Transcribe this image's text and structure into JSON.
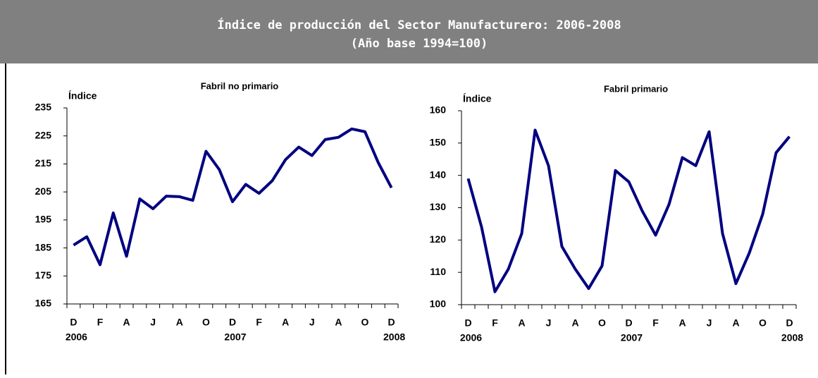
{
  "header": {
    "title": "Índice de producción del Sector Manufacturero: 2006-2008",
    "subtitle": "(Año base 1994=100)"
  },
  "chart_data": [
    {
      "type": "line",
      "title": "Fabril no primario",
      "y_label": "Índice",
      "categories": [
        "D",
        null,
        "F",
        null,
        "A",
        null,
        "J",
        null,
        "A",
        null,
        "O",
        null,
        "D",
        null,
        "F",
        null,
        "A",
        null,
        "J",
        null,
        "A",
        null,
        "O",
        null,
        "D"
      ],
      "category_years": [
        "2006",
        null,
        null,
        null,
        null,
        null,
        null,
        null,
        null,
        null,
        null,
        null,
        "2007",
        null,
        null,
        null,
        null,
        null,
        null,
        null,
        null,
        null,
        null,
        null,
        "2008"
      ],
      "series": [
        {
          "name": "Fabril no primario",
          "color": "#000080",
          "values": [
            186,
            189,
            179,
            197.5,
            182,
            202.5,
            199,
            203.5,
            203.3,
            202,
            219.5,
            213,
            201.5,
            207.7,
            204.5,
            209,
            216.5,
            221,
            218,
            223.7,
            224.5,
            227.5,
            226.5,
            215.5,
            206.5
          ]
        }
      ],
      "ylim": [
        165,
        235
      ],
      "yticks": [
        165,
        175,
        185,
        195,
        205,
        215,
        225,
        235
      ]
    },
    {
      "type": "line",
      "title": "Fabril primario",
      "y_label": "Índice",
      "categories": [
        "D",
        null,
        "F",
        null,
        "A",
        null,
        "J",
        null,
        "A",
        null,
        "O",
        null,
        "D",
        null,
        "F",
        null,
        "A",
        null,
        "J",
        null,
        "A",
        null,
        "O",
        null,
        "D"
      ],
      "category_years": [
        "2006",
        null,
        null,
        null,
        null,
        null,
        null,
        null,
        null,
        null,
        null,
        null,
        "2007",
        null,
        null,
        null,
        null,
        null,
        null,
        null,
        null,
        null,
        null,
        null,
        "2008"
      ],
      "series": [
        {
          "name": "Fabril primario",
          "color": "#000080",
          "values": [
            139,
            124,
            104,
            111,
            122,
            154,
            143,
            118,
            111,
            105,
            112,
            141.5,
            138,
            129,
            121.5,
            131,
            145.5,
            143,
            153.5,
            122,
            106.5,
            116,
            128,
            147,
            152
          ]
        }
      ],
      "ylim": [
        100,
        160
      ],
      "yticks": [
        100,
        110,
        120,
        130,
        140,
        150,
        160
      ]
    }
  ]
}
